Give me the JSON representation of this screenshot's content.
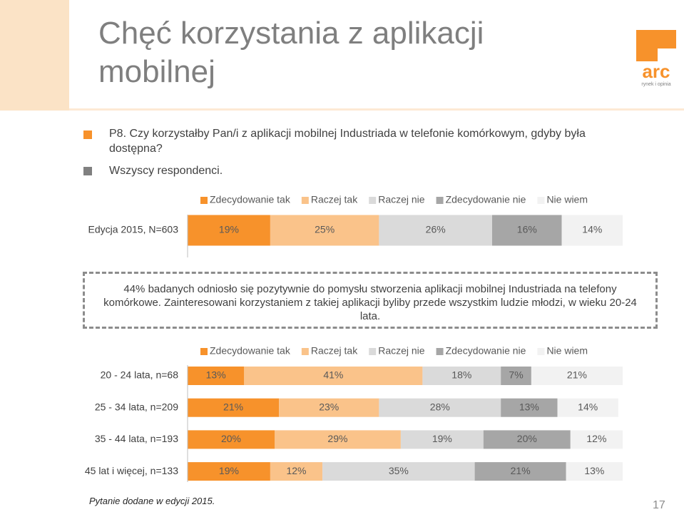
{
  "slide": {
    "title": "Chęć korzystania z aplikacji mobilnej",
    "bullets": [
      "P8. Czy korzystałby Pan/i z aplikacji mobilnej Industriada w telefonie komórkowym, gdyby była dostępna?",
      "Wszyscy respondenci."
    ],
    "note": "44% badanych odniosło się pozytywnie do pomysłu stworzenia aplikacji mobilnej Industriada na telefony komórkowe. Zainteresowani korzystaniem z takiej aplikacji byliby przede wszystkim ludzie młodzi, w wieku 20-24 lata.",
    "footnote": "Pytanie dodane w edycji 2015.",
    "page": "17",
    "logo": {
      "name": "arc",
      "tagline": "rynek i opinia"
    }
  },
  "chart_data": [
    {
      "type": "bar",
      "orientation": "horizontal",
      "stacked": true,
      "categories": [
        "Edycja 2015, N=603"
      ],
      "series": [
        {
          "name": "Zdecydowanie tak",
          "color": "#f7922b",
          "values": [
            19
          ],
          "value_labels": [
            "19%"
          ]
        },
        {
          "name": "Raczej tak",
          "color": "#fac38a",
          "values": [
            25
          ],
          "value_labels": [
            "25%"
          ]
        },
        {
          "name": "Raczej nie",
          "color": "#dadada",
          "values": [
            26
          ],
          "value_labels": [
            "26%"
          ]
        },
        {
          "name": "Zdecydowanie nie",
          "color": "#a6a6a6",
          "values": [
            16
          ],
          "value_labels": [
            "16%"
          ]
        },
        {
          "name": "Nie wiem",
          "color": "#f2f2f2",
          "values": [
            14
          ],
          "value_labels": [
            "14%"
          ]
        }
      ]
    },
    {
      "type": "bar",
      "orientation": "horizontal",
      "stacked": true,
      "categories": [
        "20 - 24 lata, n=68",
        "25 - 34 lata, n=209",
        "35 - 44 lata, n=193",
        "45 lat i więcej, n=133"
      ],
      "series": [
        {
          "name": "Zdecydowanie tak",
          "color": "#f7922b",
          "values": [
            13,
            21,
            20,
            19
          ],
          "value_labels": [
            "13%",
            "21%",
            "20%",
            "19%"
          ]
        },
        {
          "name": "Raczej tak",
          "color": "#fac38a",
          "values": [
            41,
            23,
            29,
            12
          ],
          "value_labels": [
            "41%",
            "23%",
            "29%",
            "12%"
          ]
        },
        {
          "name": "Raczej nie",
          "color": "#dadada",
          "values": [
            18,
            28,
            19,
            35
          ],
          "value_labels": [
            "18%",
            "28%",
            "19%",
            "35%"
          ]
        },
        {
          "name": "Zdecydowanie nie",
          "color": "#a6a6a6",
          "values": [
            7,
            13,
            20,
            21
          ],
          "value_labels": [
            "7%",
            "13%",
            "20%",
            "21%"
          ]
        },
        {
          "name": "Nie wiem",
          "color": "#f2f2f2",
          "values": [
            21,
            14,
            12,
            13
          ],
          "value_labels": [
            "21%",
            "14%",
            "12%",
            "13%"
          ]
        }
      ]
    }
  ]
}
